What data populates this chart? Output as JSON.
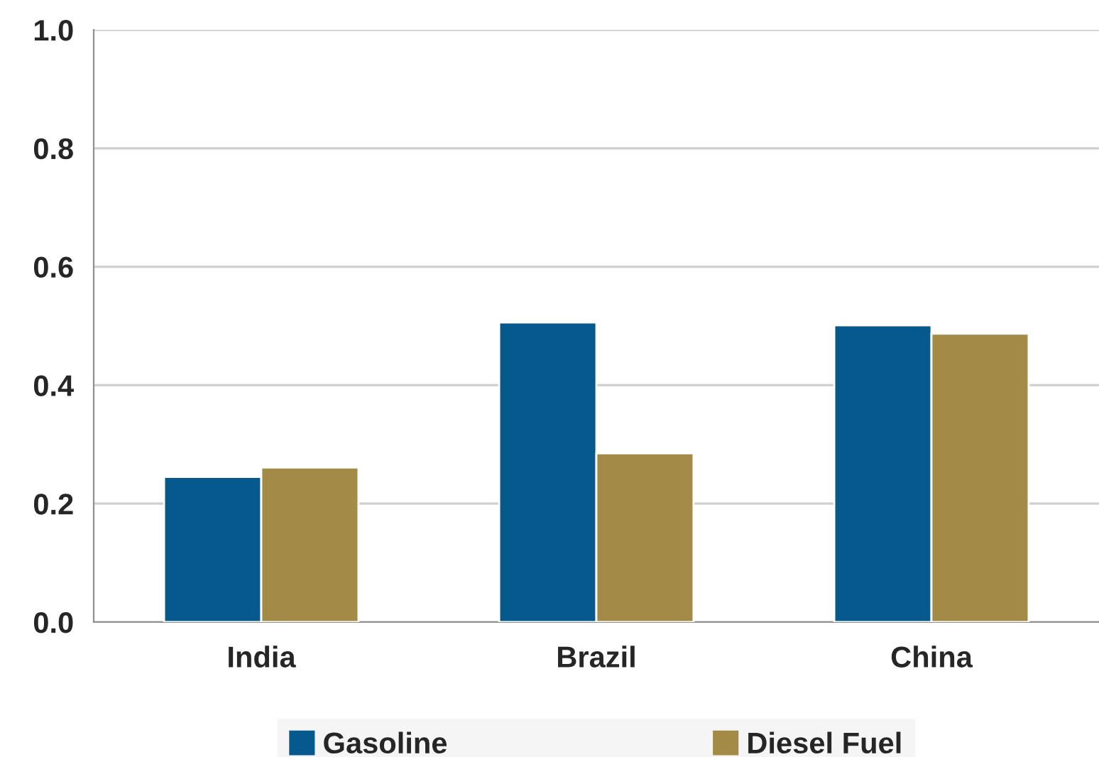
{
  "chart_data": {
    "type": "bar",
    "categories": [
      "India",
      "Brazil",
      "China"
    ],
    "series": [
      {
        "name": "Gasoline",
        "color": "#05598c",
        "values": [
          0.245,
          0.506,
          0.501
        ]
      },
      {
        "name": "Diesel Fuel",
        "color": "#a38b47",
        "values": [
          0.261,
          0.285,
          0.487
        ]
      }
    ],
    "ylim": [
      0,
      1.0
    ],
    "yticks": [
      {
        "value": 0,
        "label": "0.0"
      },
      {
        "value": 0.2,
        "label": "0.2"
      },
      {
        "value": 0.4,
        "label": "0.4"
      },
      {
        "value": 0.6,
        "label": "0.6"
      },
      {
        "value": 0.8,
        "label": "0.8"
      },
      {
        "value": 1.0,
        "label": "1.0"
      }
    ],
    "grid": "y",
    "legend": "bottom"
  }
}
